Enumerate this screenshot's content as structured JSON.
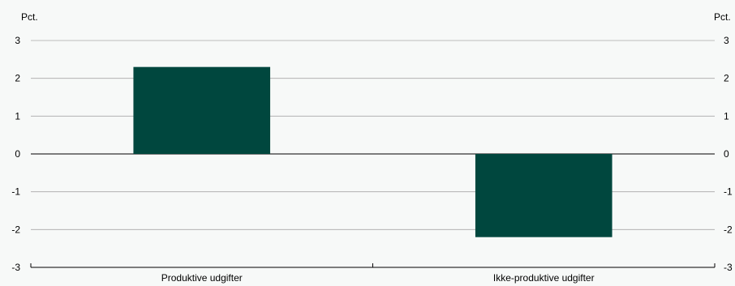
{
  "chart_data": {
    "type": "bar",
    "categories": [
      "Produktive udgifter",
      "Ikke-produktive udgifter"
    ],
    "values": [
      2.3,
      -2.2
    ],
    "ylabel_left": "Pct.",
    "ylabel_right": "Pct.",
    "ylim": [
      -3,
      3
    ],
    "yticks": [
      3,
      2,
      1,
      0,
      -1,
      -2,
      -3
    ],
    "grid": true,
    "bar_color": "#00473e"
  }
}
